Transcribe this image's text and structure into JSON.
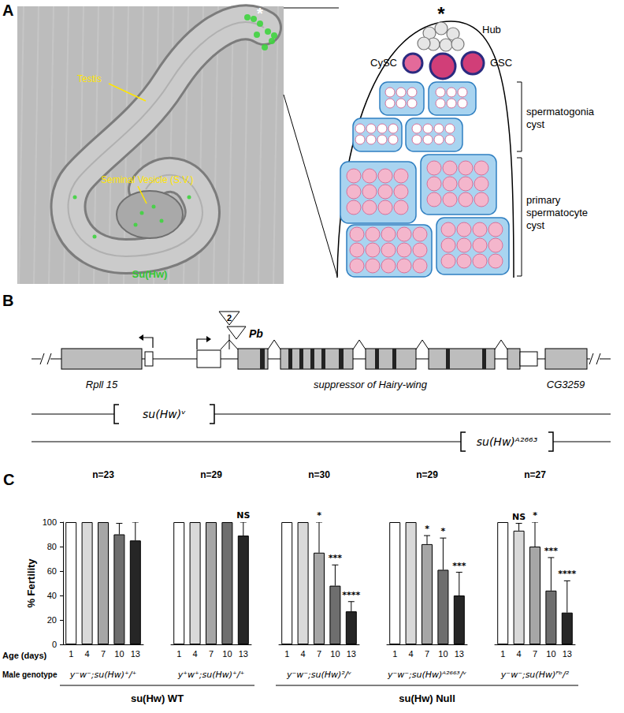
{
  "panel_a": {
    "label": "A",
    "micrograph": {
      "hub_mark": "*",
      "testis": "Testis",
      "seminal_vesicle": "Seminal Vesicle (S.V.)",
      "stain": "Su(Hw)"
    },
    "schematic": {
      "hub_mark": "*",
      "hub": "Hub",
      "cysc": "CySC",
      "gsc": "GSC",
      "spermatogonia": "spermatogonia cyst",
      "spermatocyte": "primary spermatocyte cyst"
    }
  },
  "panel_b": {
    "label": "B",
    "insertions": [
      "2",
      "Pb"
    ],
    "genes": [
      "Rpll 15",
      "suppressor of Hairy-wing",
      "CG3259"
    ],
    "deletions": [
      "su(Hw)ᵛ",
      "su(Hw)ᴬ²⁶⁶³"
    ]
  },
  "chart_data": {
    "type": "bar",
    "panel_label": "C",
    "y_label": "% Fertility",
    "x_label": "Age (days)",
    "group_axis_label": "Male genotype",
    "categories": [
      1,
      4,
      7,
      10,
      13
    ],
    "colors": [
      "#ffffff",
      "#d9d9d9",
      "#a6a6a6",
      "#6e6e6e",
      "#262626"
    ],
    "ylim": [
      0,
      100
    ],
    "yticks": [
      0,
      20,
      40,
      60,
      80,
      100
    ],
    "groups": [
      {
        "genotype": "y⁻w⁻;su(Hw)⁺/⁺",
        "n_label": "n=23",
        "group": "su(Hw) WT",
        "values": [
          100,
          100,
          100,
          90,
          85
        ],
        "errors": [
          0,
          0,
          0,
          9,
          15
        ],
        "significance": [
          null,
          null,
          null,
          null,
          null
        ]
      },
      {
        "genotype": "y⁺w⁺;su(Hw)⁺/⁺",
        "n_label": "n=29",
        "group": "su(Hw) WT",
        "values": [
          100,
          100,
          100,
          100,
          89
        ],
        "errors": [
          0,
          0,
          0,
          0,
          11
        ],
        "significance": [
          null,
          null,
          null,
          null,
          "NS"
        ]
      },
      {
        "genotype": "y⁻w⁻;su(Hw)²/ᵛ",
        "n_label": "n=30",
        "group": "su(Hw) Null",
        "values": [
          100,
          100,
          75,
          48,
          27
        ],
        "errors": [
          0,
          0,
          25,
          17,
          8
        ],
        "significance": [
          null,
          null,
          "*",
          "***",
          "****"
        ]
      },
      {
        "genotype": "y⁻w⁻;su(Hw)ᴬ²⁶⁶³/ᵛ",
        "n_label": "n=29",
        "group": "su(Hw) Null",
        "values": [
          100,
          100,
          82,
          61,
          40
        ],
        "errors": [
          0,
          0,
          7,
          26,
          19
        ],
        "significance": [
          null,
          null,
          "*",
          "*",
          "***"
        ]
      },
      {
        "genotype": "y⁻w⁻;su(Hw)ᴾᵇ/²",
        "n_label": "n=27",
        "group": "su(Hw) Null",
        "values": [
          100,
          93,
          80,
          44,
          26
        ],
        "errors": [
          0,
          6,
          20,
          27,
          26
        ],
        "significance": [
          null,
          "NS",
          "*",
          "***",
          "****"
        ]
      }
    ]
  }
}
